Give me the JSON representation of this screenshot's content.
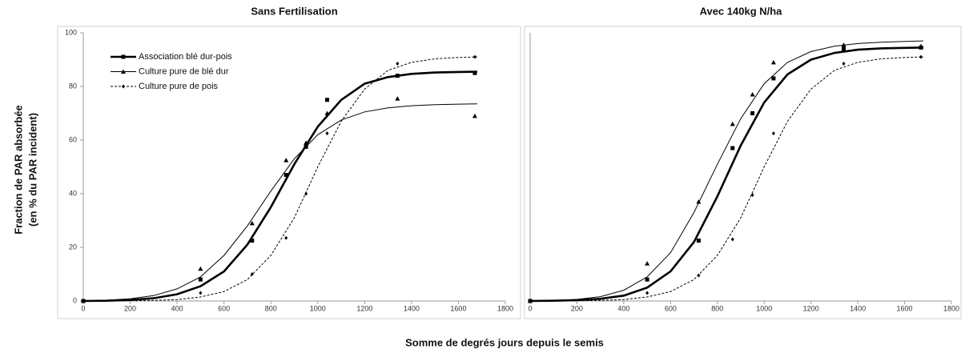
{
  "ylabel": [
    "Fraction de PAR absorbée",
    "(en % du PAR incident)"
  ],
  "xlabel": "Somme de degrés jours depuis le semis",
  "chart_data": [
    {
      "type": "scatter",
      "title": "Sans Fertilisation",
      "legend": "upper left",
      "xlim": [
        0,
        1800
      ],
      "xticks": [
        0,
        200,
        400,
        600,
        800,
        1000,
        1200,
        1400,
        1600,
        1800
      ],
      "ylim": [
        0,
        100
      ],
      "yticks": [
        0,
        20,
        40,
        60,
        80,
        100
      ],
      "series": [
        {
          "name": "Association blé dur-pois",
          "color": "#000000",
          "marker": "square",
          "line_width": 2.6,
          "dash": "none",
          "x": [
            0,
            500,
            720,
            865,
            950,
            1040,
            1340,
            1670
          ],
          "values": [
            0,
            8,
            22.5,
            47,
            57.5,
            75,
            84,
            85
          ],
          "fit_x": [
            0,
            100,
            200,
            300,
            400,
            500,
            600,
            700,
            800,
            900,
            1000,
            1100,
            1200,
            1300,
            1400,
            1500,
            1600,
            1680
          ],
          "fit_values": [
            0,
            0.1,
            0.4,
            1,
            2.5,
            5.5,
            11,
            21,
            35,
            51,
            65,
            75,
            81,
            83.5,
            84.7,
            85.2,
            85.4,
            85.5
          ]
        },
        {
          "name": "Culture pure de blé dur",
          "color": "#000000",
          "marker": "triangle",
          "line_width": 1,
          "dash": "none",
          "x": [
            0,
            500,
            720,
            865,
            950,
            1040,
            1340,
            1670
          ],
          "values": [
            0,
            12,
            29,
            52.5,
            59,
            70,
            75.5,
            69
          ],
          "fit_x": [
            0,
            100,
            200,
            300,
            400,
            500,
            600,
            700,
            800,
            900,
            1000,
            1100,
            1200,
            1300,
            1400,
            1500,
            1600,
            1680
          ],
          "fit_values": [
            0,
            0.3,
            0.8,
            2,
            4.5,
            9,
            17,
            28,
            41,
            53,
            62,
            67.5,
            70.5,
            72,
            72.8,
            73.2,
            73.4,
            73.5
          ]
        },
        {
          "name": "Culture pure de pois",
          "color": "#000000",
          "marker": "diamond",
          "line_width": 1,
          "dash": "3 2",
          "x": [
            0,
            500,
            720,
            865,
            950,
            1040,
            1340,
            1670
          ],
          "values": [
            0,
            3,
            10,
            23.5,
            40,
            62.5,
            88.5,
            91
          ],
          "fit_x": [
            0,
            100,
            200,
            300,
            400,
            500,
            600,
            700,
            800,
            900,
            1000,
            1100,
            1200,
            1300,
            1400,
            1500,
            1600,
            1680
          ],
          "fit_values": [
            0,
            0,
            0.1,
            0.2,
            0.5,
            1.5,
            3.5,
            8,
            17,
            31,
            50,
            67,
            79,
            86,
            89,
            90.3,
            90.8,
            91
          ]
        }
      ]
    },
    {
      "type": "scatter",
      "title": "Avec 140kg N/ha",
      "xlim": [
        0,
        1800
      ],
      "xticks": [
        0,
        200,
        400,
        600,
        800,
        1000,
        1200,
        1400,
        1600,
        1800
      ],
      "ylim": [
        0,
        100
      ],
      "series": [
        {
          "color": "#000000",
          "marker": "square",
          "line_width": 2.6,
          "dash": "none",
          "x": [
            0,
            500,
            720,
            865,
            950,
            1040,
            1340,
            1670
          ],
          "values": [
            0,
            8,
            22.5,
            57,
            70,
            83,
            94,
            94.5
          ],
          "fit_x": [
            0,
            100,
            200,
            300,
            400,
            500,
            600,
            700,
            800,
            900,
            1000,
            1100,
            1200,
            1300,
            1400,
            1500,
            1600,
            1680
          ],
          "fit_values": [
            0,
            0.1,
            0.3,
            0.8,
            2,
            5,
            11,
            22,
            39,
            58,
            74,
            84.5,
            90,
            92.5,
            93.7,
            94.2,
            94.4,
            94.5
          ]
        },
        {
          "color": "#000000",
          "marker": "triangle",
          "line_width": 1,
          "dash": "none",
          "x": [
            0,
            500,
            720,
            865,
            950,
            1040,
            1340,
            1670
          ],
          "values": [
            0,
            14,
            37,
            66,
            77,
            89,
            95.5,
            95
          ],
          "fit_x": [
            0,
            100,
            200,
            300,
            400,
            500,
            600,
            700,
            800,
            900,
            1000,
            1100,
            1200,
            1300,
            1400,
            1500,
            1600,
            1680
          ],
          "fit_values": [
            0,
            0.2,
            0.6,
            1.6,
            4,
            9,
            18,
            33,
            51,
            68,
            81,
            89,
            93,
            95,
            96,
            96.5,
            96.8,
            97
          ]
        },
        {
          "color": "#000000",
          "marker": "diamond",
          "line_width": 1,
          "dash": "3 2",
          "x": [
            0,
            500,
            720,
            865,
            950,
            1040,
            1340,
            1670
          ],
          "values": [
            0,
            3,
            9.5,
            23,
            39.5,
            62.5,
            88.5,
            91
          ],
          "fit_x": [
            0,
            100,
            200,
            300,
            400,
            500,
            600,
            700,
            800,
            900,
            1000,
            1100,
            1200,
            1300,
            1400,
            1500,
            1600,
            1680
          ],
          "fit_values": [
            0,
            0,
            0.1,
            0.2,
            0.5,
            1.5,
            3.5,
            8,
            17,
            31,
            50,
            67,
            79,
            86,
            89,
            90.3,
            90.8,
            91
          ]
        }
      ]
    }
  ]
}
